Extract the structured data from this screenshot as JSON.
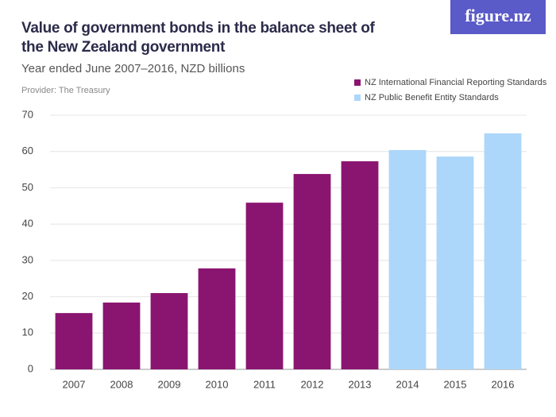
{
  "chart_data": {
    "type": "bar",
    "title": "Value of government bonds in the balance sheet of the New Zealand government",
    "subtitle": "Year ended June 2007–2016, NZD billions",
    "provider": "Provider: The Treasury",
    "brand": "figure.nz",
    "categories": [
      "2007",
      "2008",
      "2009",
      "2010",
      "2011",
      "2012",
      "2013",
      "2014",
      "2015",
      "2016"
    ],
    "series": [
      {
        "name": "NZ International Financial Reporting Standards",
        "color": "#8a1570",
        "values": [
          15.5,
          18.4,
          21.0,
          27.8,
          45.9,
          53.8,
          57.3,
          null,
          null,
          null
        ]
      },
      {
        "name": "NZ Public Benefit Entity Standards",
        "color": "#acd6fa",
        "values": [
          null,
          null,
          null,
          null,
          null,
          null,
          null,
          60.4,
          58.6,
          65.0
        ]
      }
    ],
    "ylim": [
      0,
      70
    ],
    "yticks": [
      0,
      10,
      20,
      30,
      40,
      50,
      60,
      70
    ],
    "grid": true,
    "legend": "top-right"
  }
}
